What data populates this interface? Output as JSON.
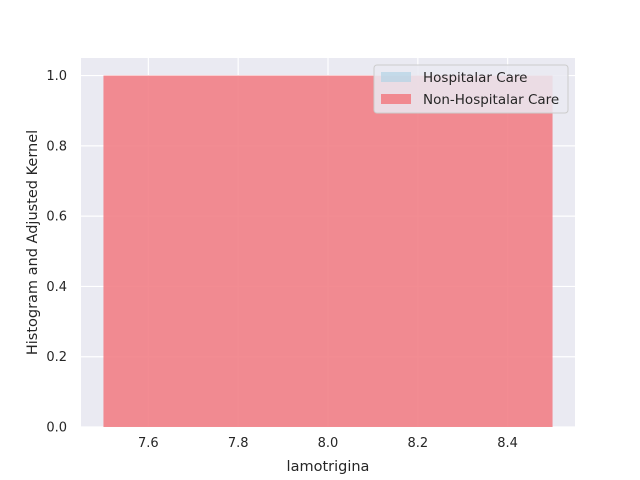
{
  "chart_data": {
    "type": "bar",
    "xlabel": "lamotrigina",
    "ylabel": "Histogram and Adjusted Kernel",
    "xlim": [
      7.45,
      8.55
    ],
    "ylim": [
      0,
      1.05
    ],
    "xticks": [
      7.6,
      7.8,
      8.0,
      8.2,
      8.4
    ],
    "xtick_labels": [
      "7.6",
      "7.8",
      "8.0",
      "8.2",
      "8.4"
    ],
    "yticks": [
      0.0,
      0.2,
      0.4,
      0.6,
      0.8,
      1.0
    ],
    "ytick_labels": [
      "0.0",
      "0.2",
      "0.4",
      "0.6",
      "0.8",
      "1.0"
    ],
    "grid": true,
    "legend_position": "top-right",
    "series": [
      {
        "name": "Hospitalar Care",
        "color": "#b6d4e6",
        "opacity": 0.75,
        "bins": []
      },
      {
        "name": "Non-Hospitalar Care",
        "color": "#f28086",
        "opacity": 0.9,
        "bins": [
          {
            "x0": 7.5,
            "x1": 8.5,
            "value": 1.0
          }
        ]
      }
    ]
  }
}
